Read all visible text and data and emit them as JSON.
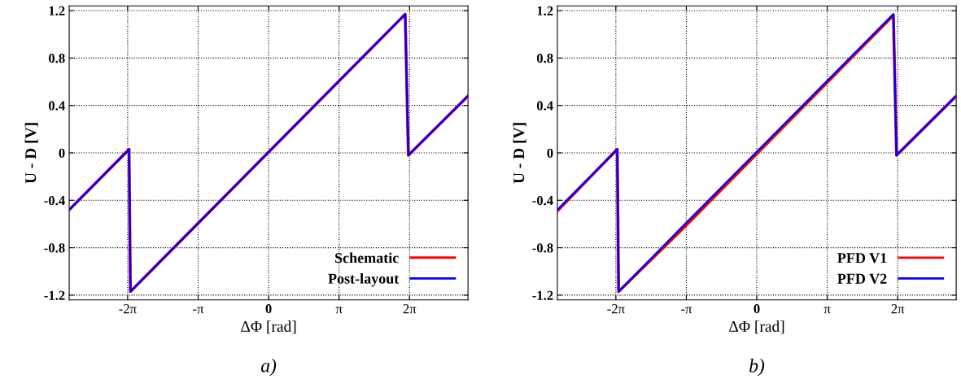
{
  "chart_data": [
    {
      "type": "line",
      "xlabel": "ΔΦ [rad]",
      "ylabel": "U - D [V]",
      "annotations": [
        "a)"
      ],
      "x": [
        -8.89,
        -6.22,
        -6.16,
        6.09,
        6.23,
        8.89
      ],
      "series": [
        {
          "name": "Schematic",
          "color": "#ff0000",
          "values": [
            -0.48,
            0.03,
            -1.17,
            1.17,
            -0.02,
            0.48
          ]
        },
        {
          "name": "Post-layout",
          "color": "#0000ff",
          "values": [
            -0.48,
            0.03,
            -1.17,
            1.17,
            -0.02,
            0.48
          ]
        }
      ],
      "xlim": [
        -8.89,
        8.89
      ],
      "ylim": [
        -1.24,
        1.24
      ],
      "xticks": [
        {
          "value": -6.283,
          "label": "-2π"
        },
        {
          "value": -3.142,
          "label": "-π"
        },
        0,
        {
          "value": 3.142,
          "label": "π"
        },
        {
          "value": 6.283,
          "label": "2π"
        }
      ],
      "yticks": [
        -1.2,
        -0.8,
        -0.4,
        0,
        0.4,
        0.8,
        1.2
      ],
      "grid": true,
      "legend": "bottom right",
      "line_style": "solid",
      "marker": "none"
    },
    {
      "type": "line",
      "xlabel": "ΔΦ [rad]",
      "ylabel": "U - D [V]",
      "annotations": [
        "b)"
      ],
      "x": [
        -8.89,
        -6.22,
        -6.16,
        -3.14,
        6.09,
        6.23,
        8.89
      ],
      "series": [
        {
          "name": "PFD V1",
          "color": "#ff0000",
          "values": [
            -0.49,
            0.03,
            -1.17,
            -0.61,
            1.16,
            -0.02,
            0.48
          ]
        },
        {
          "name": "PFD V2",
          "color": "#0000ff",
          "values": [
            -0.48,
            0.03,
            -1.17,
            -0.59,
            1.17,
            -0.02,
            0.48
          ]
        }
      ],
      "xlim": [
        -8.89,
        8.89
      ],
      "ylim": [
        -1.24,
        1.24
      ],
      "xticks": [
        {
          "value": -6.283,
          "label": "-2π"
        },
        {
          "value": -3.142,
          "label": "-π"
        },
        0,
        {
          "value": 3.142,
          "label": "π"
        },
        {
          "value": 6.283,
          "label": "2π"
        }
      ],
      "yticks": [
        -1.2,
        -0.8,
        -0.4,
        0,
        0.4,
        0.8,
        1.2
      ],
      "grid": true,
      "legend": "bottom right",
      "line_style": "solid",
      "marker": "none"
    }
  ]
}
